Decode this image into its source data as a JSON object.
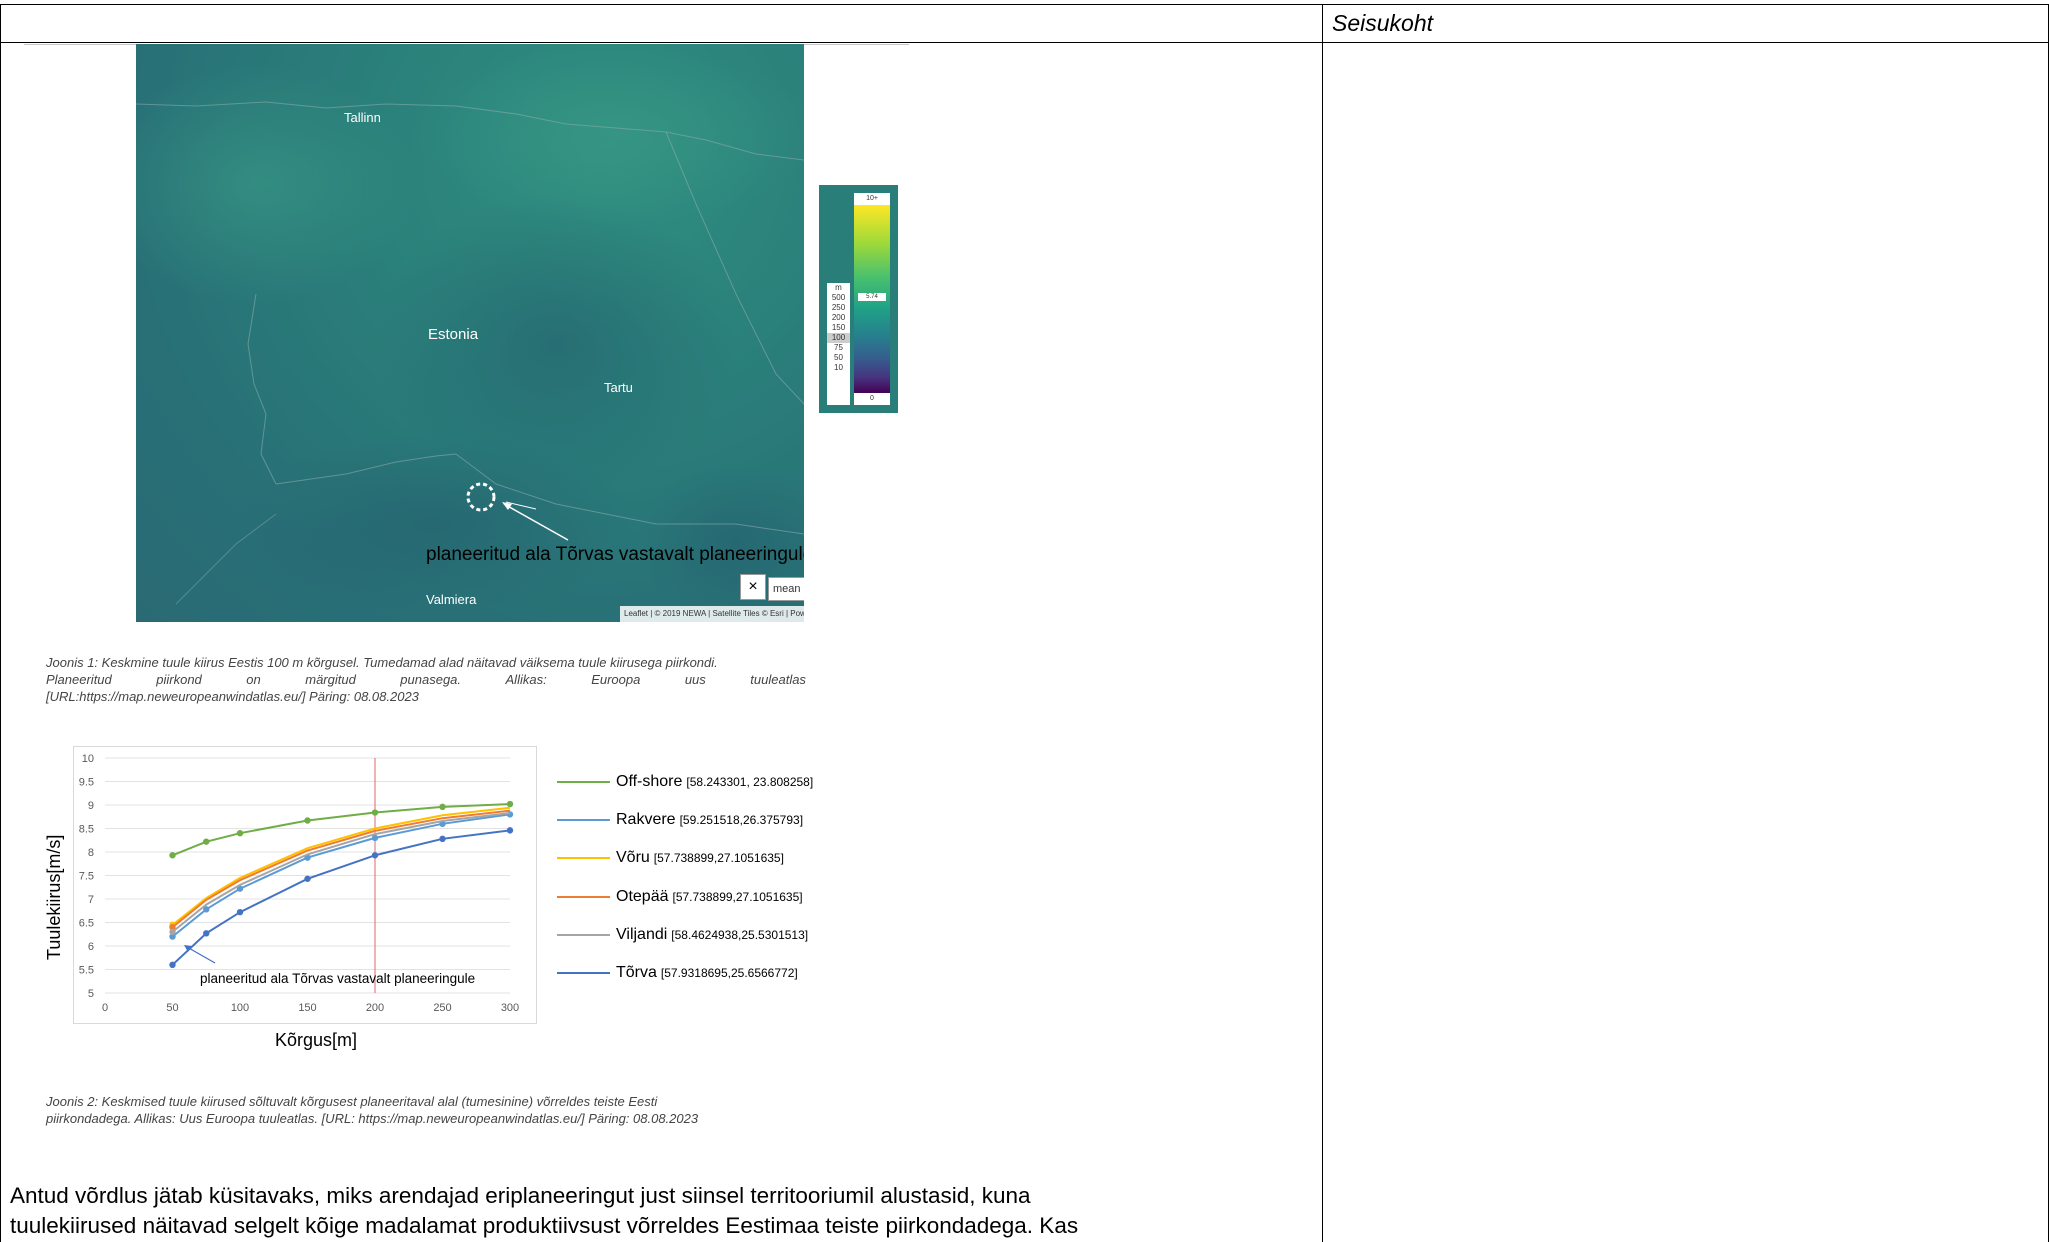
{
  "header": {
    "right_column_title": "Seisukoht"
  },
  "map": {
    "cities": [
      "Tallinn",
      "Estonia",
      "Tartu",
      "Valmiera"
    ],
    "annotation": "planeeritud ala Tõrvas vastavalt planeeringule",
    "close_glyph": "×",
    "mean_label": "mean",
    "attribution": "Leaflet | © 2019 NEWA | Satellite Tiles © Esri | Pow",
    "legend": {
      "unit": "m",
      "heights": [
        "500",
        "250",
        "200",
        "150",
        "100",
        "75",
        "50",
        "10"
      ],
      "selected_height": "100",
      "colorbar_top": "10+",
      "colorbar_bottom": "0",
      "colorbar_mark": "5.74"
    }
  },
  "caption1": {
    "lines": [
      [
        "Joonis 1: Keskmine tuule kiirus Eestis 100 m kõrgusel. Tumedamad alad näitavad väiksema tuule kiirusega piirkondi."
      ],
      [
        "Planeeritud",
        "piirkond",
        "on",
        "märgitud",
        "punasega.",
        "Allikas:",
        "Euroopa",
        "uus",
        "tuuleatlas"
      ],
      [
        "[URL:https://map.neweuropeanwindatlas.eu/] Päring: 08.08.2023"
      ]
    ]
  },
  "chart_data": {
    "type": "line",
    "xlabel": "Kõrgus[m]",
    "ylabel": "Tuulekiirus[m/s]",
    "xlim": [
      0,
      300
    ],
    "ylim": [
      5,
      10
    ],
    "xticks": [
      0,
      50,
      100,
      150,
      200,
      250,
      300
    ],
    "yticks": [
      5,
      5.5,
      6,
      6.5,
      7,
      7.5,
      8,
      8.5,
      9,
      9.5,
      10
    ],
    "ytick_labels": [
      "5",
      "5.5",
      "6",
      "6.5",
      "7",
      "7.5",
      "8",
      "8.5",
      "9",
      "9.5",
      "10"
    ],
    "grid": true,
    "legend_position": "right",
    "vline_x": 200,
    "x": [
      50,
      75,
      100,
      150,
      200,
      250,
      300
    ],
    "annotation": "planeeritud ala Tõrvas vastavalt planeeringule",
    "series": [
      {
        "name": "Off-shore",
        "coords": "[58.243301, 23.808258]",
        "color": "#70ad47",
        "values": [
          7.93,
          8.22,
          8.4,
          8.67,
          8.84,
          8.96,
          9.02
        ]
      },
      {
        "name": "Rakvere",
        "coords": "[59.251518,26.375793]",
        "color": "#5b9bd5",
        "values": [
          6.2,
          6.78,
          7.22,
          7.88,
          8.3,
          8.6,
          8.8
        ]
      },
      {
        "name": "Võru",
        "coords": "[57.738899,27.1051635]",
        "color": "#ffc000",
        "values": [
          6.45,
          7.02,
          7.45,
          8.08,
          8.5,
          8.78,
          8.94
        ]
      },
      {
        "name": "Otepää",
        "coords": "[57.738899,27.1051635]",
        "color": "#ed7d31",
        "values": [
          6.4,
          6.98,
          7.4,
          8.03,
          8.45,
          8.72,
          8.88
        ]
      },
      {
        "name": "Viljandi",
        "coords": "[58.4624938,25.5301513]",
        "color": "#a5a5a5",
        "values": [
          6.3,
          6.88,
          7.3,
          7.95,
          8.38,
          8.66,
          8.83
        ]
      },
      {
        "name": "Tõrva",
        "coords": "[57.9318695,25.6566772]",
        "color": "#4472c4",
        "values": [
          5.6,
          6.27,
          6.72,
          7.43,
          7.93,
          8.28,
          8.46
        ]
      }
    ]
  },
  "caption2": {
    "lines": [
      "Joonis 2: Keskmised tuule kiirused sõltuvalt kõrgusest planeeritaval alal (tumesinine) võrreldes teiste Eesti",
      "piirkondadega. Allikas: Uus Euroopa tuuleatlas. [URL: https://map.neweuropeanwindatlas.eu/] Päring: 08.08.2023"
    ]
  },
  "body": {
    "lines": [
      "Antud võrdlus jätab küsitavaks, miks arendajad eriplaneeringut just siinsel territooriumil alustasid, kuna",
      "tuulekiirused näitavad selgelt kõige madalamat produktiivsust võrreldes Eestimaa teiste piirkondadega. Kas"
    ]
  }
}
